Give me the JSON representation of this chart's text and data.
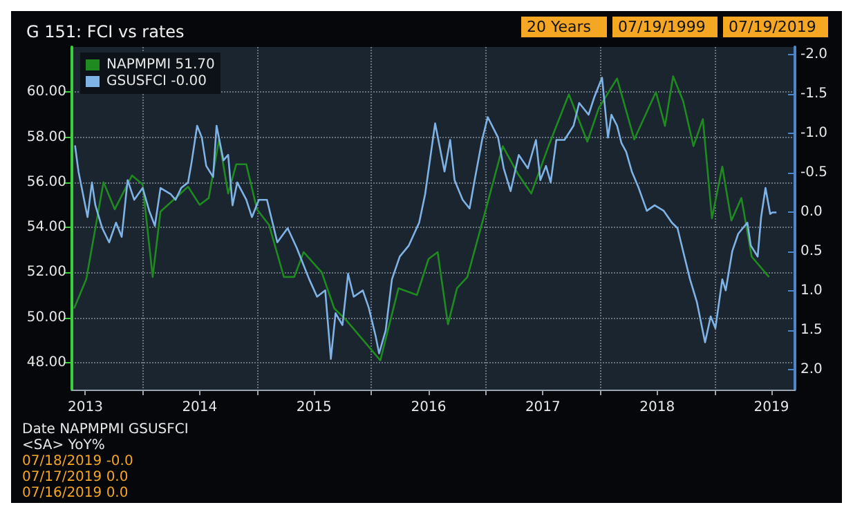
{
  "chart_data": {
    "type": "line",
    "title": "G 151: FCI vs rates",
    "annotations": [
      "20 Years",
      "07/19/1999",
      "07/19/2019",
      "Date NAPMPMI GSUSFCI",
      "<SA> YoY%",
      "07/18/2019 -0.0",
      "07/17/2019 0.0",
      "07/16/2019 0.0"
    ],
    "xlim": [
      "2013-05-20",
      "2019-09-15"
    ],
    "xticks": [
      {
        "value": "2013-07-02",
        "label": "2013"
      },
      {
        "value": "2014-01-01",
        "label": null
      },
      {
        "value": "2014-07-02",
        "label": "2014"
      },
      {
        "value": "2015-01-01",
        "label": null
      },
      {
        "value": "2015-07-02",
        "label": "2015"
      },
      {
        "value": "2016-01-01",
        "label": null
      },
      {
        "value": "2016-07-02",
        "label": "2016"
      },
      {
        "value": "2017-01-01",
        "label": null
      },
      {
        "value": "2017-07-02",
        "label": "2017"
      },
      {
        "value": "2018-01-01",
        "label": null
      },
      {
        "value": "2018-07-02",
        "label": "2018"
      },
      {
        "value": "2019-01-01",
        "label": null
      },
      {
        "value": "2019-07-02",
        "label": "2019"
      }
    ],
    "ylim": [
      46.8,
      62
    ],
    "yticks": [
      {
        "value": 48,
        "label": "48.00"
      },
      {
        "value": 50,
        "label": "50.00"
      },
      {
        "value": 52,
        "label": "52.00"
      },
      {
        "value": 54,
        "label": "54.00"
      },
      {
        "value": 56,
        "label": "56.00"
      },
      {
        "value": 58,
        "label": "58.00"
      },
      {
        "value": 60,
        "label": "60.00"
      }
    ],
    "y2lim": [
      2.25,
      -2.1
    ],
    "y2ticks": [
      {
        "value": -2,
        "label": "-2.0"
      },
      {
        "value": -1.5,
        "label": "-1.5"
      },
      {
        "value": -1,
        "label": "-1.0"
      },
      {
        "value": -0.5,
        "label": "-0.5"
      },
      {
        "value": 0,
        "label": "0.0"
      },
      {
        "value": 0.5,
        "label": "0.5"
      },
      {
        "value": 1,
        "label": "1.0"
      },
      {
        "value": 1.5,
        "label": "1.5"
      },
      {
        "value": 2,
        "label": "2.0"
      }
    ],
    "grid": true,
    "legend": "top left",
    "marker": "none",
    "line_style": "solid",
    "series": [
      {
        "name": "NAPMPMI 51.70",
        "color": "#1f8a1f",
        "x": [
          "2013-05-27",
          "2013-07-05",
          "2013-08-29",
          "2013-10-04",
          "2013-11-28",
          "2014-01-01",
          "2014-02-02",
          "2014-02-27",
          "2014-05-26",
          "2014-07-02",
          "2014-07-31",
          "2014-09-02",
          "2014-10-01",
          "2014-10-27",
          "2014-11-28",
          "2015-01-01",
          "2015-02-09",
          "2015-03-28",
          "2015-04-30",
          "2015-05-30",
          "2015-07-27",
          "2015-09-05",
          "2015-10-12",
          "2016-01-30",
          "2016-03-28",
          "2016-05-26",
          "2016-07-02",
          "2016-07-31",
          "2016-09-02",
          "2016-10-01",
          "2016-11-03",
          "2017-01-01",
          "2017-02-24",
          "2017-04-12",
          "2017-05-26",
          "2017-07-20",
          "2017-09-23",
          "2017-11-21",
          "2017-12-28",
          "2018-02-24",
          "2018-04-20",
          "2018-06-28",
          "2018-07-27",
          "2018-08-22",
          "2018-09-23",
          "2018-10-26",
          "2018-11-25",
          "2018-12-24",
          "2019-01-26",
          "2019-02-24",
          "2019-03-28",
          "2019-04-30",
          "2019-06-24"
        ],
        "values": [
          50.4,
          51.7,
          56.0,
          54.8,
          56.3,
          55.9,
          51.8,
          54.7,
          55.8,
          55.0,
          55.3,
          57.9,
          55.5,
          56.8,
          56.8,
          54.8,
          54.1,
          51.8,
          51.8,
          52.9,
          52.0,
          50.4,
          49.9,
          48.1,
          51.3,
          51.0,
          52.6,
          52.9,
          49.7,
          51.3,
          51.8,
          54.8,
          57.6,
          56.4,
          55.5,
          57.6,
          59.9,
          57.8,
          59.3,
          60.6,
          57.9,
          60.0,
          58.5,
          60.7,
          59.6,
          57.6,
          58.8,
          54.4,
          56.7,
          54.3,
          55.3,
          52.7,
          51.8
        ]
      },
      {
        "name": "GSUSFCI -0.00",
        "color": "#7fb3e6",
        "axis": "y2",
        "x": [
          "2013-05-30",
          "2013-06-10",
          "2013-06-28",
          "2013-07-09",
          "2013-07-23",
          "2013-08-03",
          "2013-08-25",
          "2013-09-16",
          "2013-10-08",
          "2013-10-26",
          "2013-11-14",
          "2013-12-05",
          "2014-01-01",
          "2014-01-22",
          "2014-02-09",
          "2014-02-27",
          "2014-04-01",
          "2014-04-16",
          "2014-05-04",
          "2014-05-26",
          "2014-06-06",
          "2014-06-24",
          "2014-07-09",
          "2014-07-23",
          "2014-08-14",
          "2014-08-25",
          "2014-09-16",
          "2014-10-01",
          "2014-10-15",
          "2014-10-30",
          "2014-11-28",
          "2014-12-16",
          "2015-01-07",
          "2015-02-02",
          "2015-03-07",
          "2015-04-09",
          "2015-05-08",
          "2015-06-17",
          "2015-07-12",
          "2015-08-07",
          "2015-08-25",
          "2015-09-09",
          "2015-10-01",
          "2015-10-19",
          "2015-11-06",
          "2015-12-05",
          "2015-12-24",
          "2016-01-15",
          "2016-01-26",
          "2016-02-16",
          "2016-03-07",
          "2016-04-01",
          "2016-04-30",
          "2016-06-02",
          "2016-06-21",
          "2016-07-23",
          "2016-08-22",
          "2016-09-09",
          "2016-09-23",
          "2016-10-19",
          "2016-11-10",
          "2016-11-28",
          "2016-12-20",
          "2017-01-07",
          "2017-02-09",
          "2017-02-27",
          "2017-03-21",
          "2017-04-16",
          "2017-05-15",
          "2017-06-10",
          "2017-06-24",
          "2017-07-12",
          "2017-07-27",
          "2017-08-14",
          "2017-09-09",
          "2017-10-08",
          "2017-10-26",
          "2017-11-25",
          "2017-12-13",
          "2018-01-07",
          "2018-01-26",
          "2018-02-06",
          "2018-02-24",
          "2018-03-10",
          "2018-03-25",
          "2018-04-12",
          "2018-05-04",
          "2018-05-30",
          "2018-06-24",
          "2018-07-23",
          "2018-08-18",
          "2018-09-05",
          "2018-09-27",
          "2018-10-15",
          "2018-11-06",
          "2018-12-02",
          "2018-12-20",
          "2019-01-04",
          "2019-01-26",
          "2019-02-06",
          "2019-02-27",
          "2019-03-18",
          "2019-04-16",
          "2019-04-27",
          "2019-05-19",
          "2019-05-30",
          "2019-06-13",
          "2019-06-28",
          "2019-07-05",
          "2019-07-18"
        ],
        "values": [
          -0.85,
          -0.52,
          -0.16,
          0.06,
          -0.38,
          -0.09,
          0.2,
          0.38,
          0.13,
          0.31,
          -0.41,
          -0.16,
          -0.31,
          -0.02,
          0.17,
          -0.31,
          -0.23,
          -0.16,
          -0.31,
          -0.38,
          -0.63,
          -1.1,
          -0.95,
          -0.59,
          -0.45,
          -1.1,
          -0.66,
          -0.73,
          -0.09,
          -0.38,
          -0.16,
          0.06,
          -0.16,
          -0.16,
          0.38,
          0.2,
          0.45,
          0.85,
          1.07,
          0.99,
          1.86,
          1.28,
          1.43,
          0.78,
          1.07,
          0.99,
          1.21,
          1.57,
          1.79,
          1.5,
          0.85,
          0.56,
          0.42,
          0.13,
          -0.23,
          -1.13,
          -0.52,
          -0.92,
          -0.41,
          -0.16,
          -0.05,
          -0.45,
          -0.92,
          -1.21,
          -0.95,
          -0.56,
          -0.27,
          -0.73,
          -0.56,
          -0.92,
          -0.41,
          -0.59,
          -0.38,
          -0.92,
          -0.92,
          -1.1,
          -1.39,
          -1.24,
          -1.46,
          -1.71,
          -0.95,
          -1.24,
          -1.1,
          -0.88,
          -0.77,
          -0.52,
          -0.31,
          -0.02,
          -0.09,
          -0.02,
          0.13,
          0.2,
          0.56,
          0.85,
          1.14,
          1.65,
          1.32,
          1.47,
          0.85,
          0.99,
          0.49,
          0.27,
          0.13,
          0.42,
          0.56,
          0.06,
          -0.31,
          0.02,
          0.0,
          -0.0
        ]
      }
    ]
  }
}
